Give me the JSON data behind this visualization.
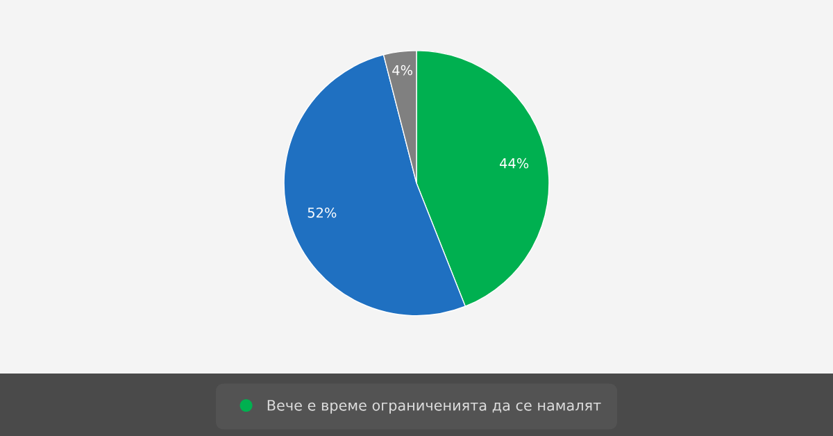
{
  "chart_data": {
    "type": "pie",
    "categories": [
      "Вече е време ограниченията да се намалят",
      null,
      null
    ],
    "values": [
      44,
      52,
      4
    ],
    "colors": [
      "#00b050",
      "#1f70c1",
      "#808080"
    ],
    "value_labels": [
      "44%",
      "52%",
      "4%"
    ],
    "legend": "bottom"
  }
}
